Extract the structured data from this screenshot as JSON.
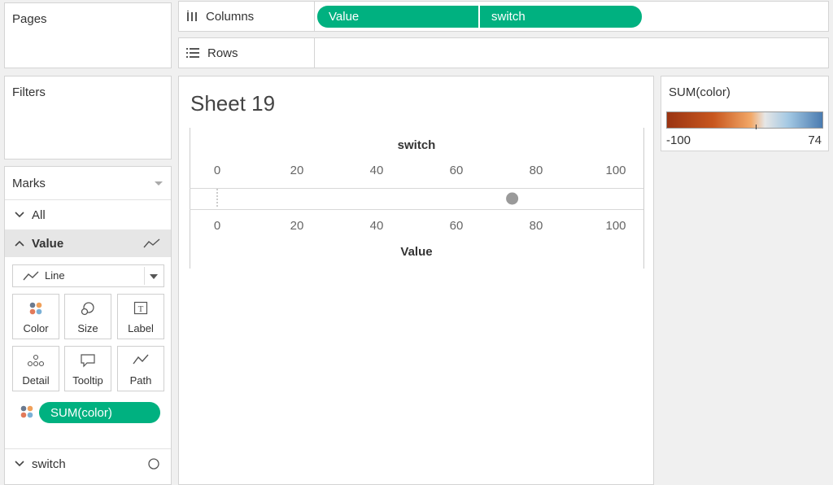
{
  "cards": {
    "pages_title": "Pages",
    "filters_title": "Filters"
  },
  "shelves": {
    "columns_label": "Columns",
    "rows_label": "Rows",
    "columns_pills": [
      "Value",
      "switch"
    ]
  },
  "marks": {
    "title": "Marks",
    "all_label": "All",
    "value_label": "Value",
    "mark_type": "Line",
    "buttons": [
      "Color",
      "Size",
      "Label",
      "Detail",
      "Tooltip",
      "Path"
    ],
    "color_pill": "SUM(color)",
    "switch_label": "switch"
  },
  "sheet": {
    "title": "Sheet 19",
    "top_axis_title": "switch",
    "bottom_axis_title": "Value",
    "ticks": [
      "0",
      "20",
      "40",
      "60",
      "80",
      "100"
    ]
  },
  "chart_data": {
    "type": "line",
    "title": "Sheet 19",
    "xlabel": "Value",
    "x2label": "switch",
    "xlim": [
      0,
      100
    ],
    "x2lim": [
      0,
      100
    ],
    "line": {
      "x_start": 0,
      "x_end": 100
    },
    "switch_point": {
      "value": 74
    },
    "color_scale": {
      "min": -100,
      "max": 74,
      "low_color": "#a63a14",
      "high_color": "#4a7bb0"
    }
  },
  "legend": {
    "title": "SUM(color)",
    "min_label": "-100",
    "max_label": "74"
  },
  "colors": {
    "pill_green": "#00b180",
    "panel_border": "#d4d4d4"
  }
}
